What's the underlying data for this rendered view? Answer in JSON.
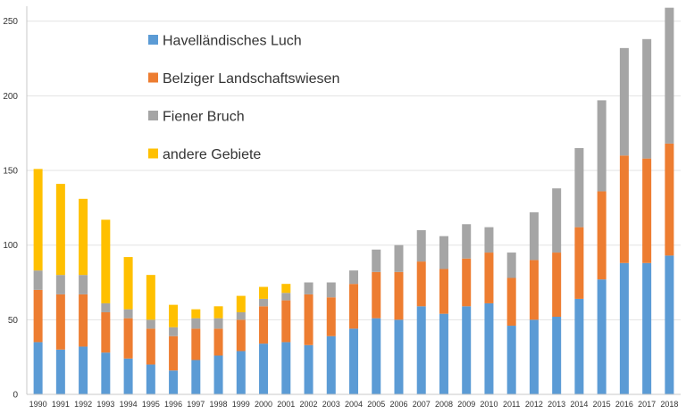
{
  "chart_data": {
    "type": "bar",
    "stacked": true,
    "title": "",
    "xlabel": "",
    "ylabel": "",
    "ylim": [
      0,
      260
    ],
    "yticks": [
      0,
      50,
      100,
      150,
      200,
      250
    ],
    "grid": true,
    "legend_placement": "top-left",
    "categories": [
      "1990",
      "1991",
      "1992",
      "1993",
      "1994",
      "1995",
      "1996",
      "1997",
      "1998",
      "1999",
      "2000",
      "2001",
      "2002",
      "2003",
      "2004",
      "2005",
      "2006",
      "2007",
      "2008",
      "2009",
      "2010",
      "2011",
      "2012",
      "2013",
      "2014",
      "2015",
      "2016",
      "2017",
      "2018"
    ],
    "series": [
      {
        "name": "Havelländisches Luch",
        "color": "#5b9bd5",
        "values": [
          35,
          30,
          32,
          28,
          24,
          20,
          16,
          23,
          26,
          29,
          34,
          35,
          33,
          39,
          44,
          51,
          50,
          59,
          54,
          59,
          61,
          46,
          50,
          52,
          64,
          77,
          88,
          88,
          93
        ]
      },
      {
        "name": "Belziger Landschaftswiesen",
        "color": "#ed7d31",
        "values": [
          35,
          37,
          35,
          27,
          27,
          24,
          23,
          21,
          18,
          21,
          25,
          28,
          34,
          26,
          30,
          31,
          32,
          30,
          30,
          32,
          34,
          32,
          40,
          43,
          48,
          59,
          72,
          70,
          75
        ]
      },
      {
        "name": "Fiener Bruch",
        "color": "#a5a5a5",
        "values": [
          13,
          13,
          13,
          6,
          6,
          6,
          6,
          7,
          7,
          5,
          5,
          5,
          8,
          10,
          9,
          15,
          18,
          21,
          22,
          23,
          17,
          17,
          32,
          43,
          53,
          61,
          72,
          80,
          91
        ]
      },
      {
        "name": "andere Gebiete",
        "color": "#ffc000",
        "values": [
          68,
          61,
          51,
          56,
          35,
          30,
          15,
          6,
          8,
          11,
          8,
          6,
          0,
          0,
          0,
          0,
          0,
          0,
          0,
          0,
          0,
          0,
          0,
          0,
          0,
          0,
          0,
          0,
          0
        ]
      }
    ]
  }
}
